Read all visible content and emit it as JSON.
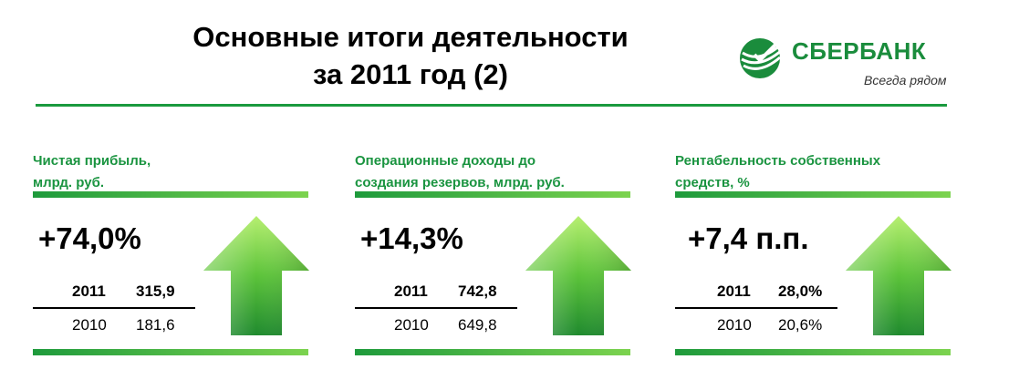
{
  "title": {
    "line1": "Основные итоги деятельности",
    "line2": "за 2011 год (2)"
  },
  "logo": {
    "name": "СБЕРБАНК",
    "slogan": "Всегда рядом"
  },
  "cards": [
    {
      "title_line1": "Чистая прибыль,",
      "title_line2": "млрд. руб.",
      "change": "+74,0%",
      "rows": [
        {
          "year": "2011",
          "value": "315,9"
        },
        {
          "year": "2010",
          "value": "181,6"
        }
      ]
    },
    {
      "title_line1": "Операционные доходы до",
      "title_line2": "создания резервов, млрд. руб.",
      "change": "+14,3%",
      "rows": [
        {
          "year": "2011",
          "value": "742,8"
        },
        {
          "year": "2010",
          "value": "649,8"
        }
      ]
    },
    {
      "title_line1": "Рентабельность собственных",
      "title_line2": "средств, %",
      "change": "+7,4 п.п.",
      "rows": [
        {
          "year": "2011",
          "value": "28,0%"
        },
        {
          "year": "2010",
          "value": "20,6%"
        }
      ]
    }
  ],
  "colors": {
    "brand_green": "#1a8c3c",
    "arrow_light": "#9be45c",
    "arrow_dark": "#1f8f2f"
  },
  "icons": {
    "arrow": "up-arrow-icon",
    "logo": "sberbank-logo-icon"
  }
}
